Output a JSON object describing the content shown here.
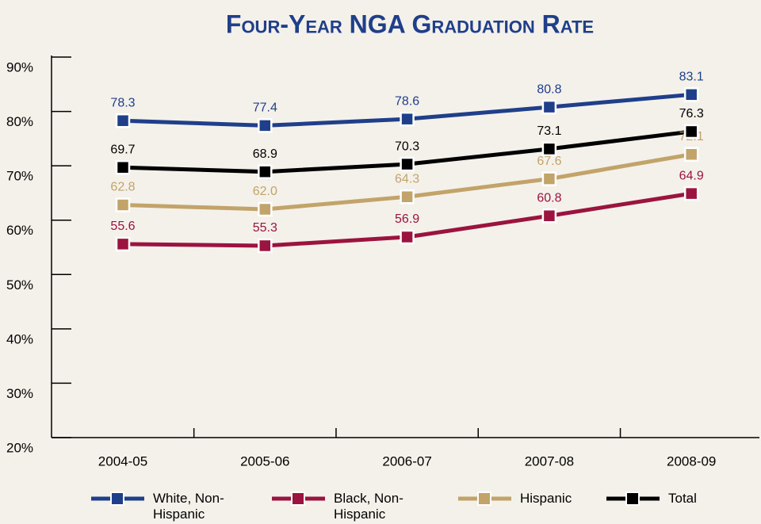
{
  "chart_data": {
    "type": "line",
    "title": "Four-Year NGA Graduation Rate",
    "categories": [
      "2004-05",
      "2005-06",
      "2006-07",
      "2007-08",
      "2008-09"
    ],
    "series": [
      {
        "name": "White, Non-Hispanic",
        "color": "#1f3f8a",
        "values": [
          78.3,
          77.4,
          78.6,
          80.8,
          83.1
        ],
        "value_labels": [
          "78.3",
          "77.4",
          "78.6",
          "80.8",
          "83.1"
        ]
      },
      {
        "name": "Black, Non-Hispanic",
        "color": "#9b1440",
        "values": [
          55.6,
          55.3,
          56.9,
          60.8,
          64.9
        ],
        "value_labels": [
          "55.6",
          "55.3",
          "56.9",
          "60.8",
          "64.9"
        ]
      },
      {
        "name": "Hispanic",
        "color": "#c2a46b",
        "values": [
          62.8,
          62.0,
          64.3,
          67.6,
          72.1
        ],
        "value_labels": [
          "62.8",
          "62.0",
          "64.3",
          "67.6",
          "72.1"
        ]
      },
      {
        "name": "Total",
        "color": "#000000",
        "values": [
          69.7,
          68.9,
          70.3,
          73.1,
          76.3
        ],
        "value_labels": [
          "69.7",
          "68.9",
          "70.3",
          "73.1",
          "76.3"
        ]
      }
    ],
    "ylim": [
      20,
      90
    ],
    "yticks": [
      {
        "value": 20,
        "label": "20%"
      },
      {
        "value": 30,
        "label": "30%"
      },
      {
        "value": 40,
        "label": "40%"
      },
      {
        "value": 50,
        "label": "50%"
      },
      {
        "value": 60,
        "label": "60%"
      },
      {
        "value": 70,
        "label": "70%"
      },
      {
        "value": 80,
        "label": "80%"
      },
      {
        "value": 90,
        "label": "90%"
      }
    ],
    "grid": false,
    "legend": "bottom"
  }
}
